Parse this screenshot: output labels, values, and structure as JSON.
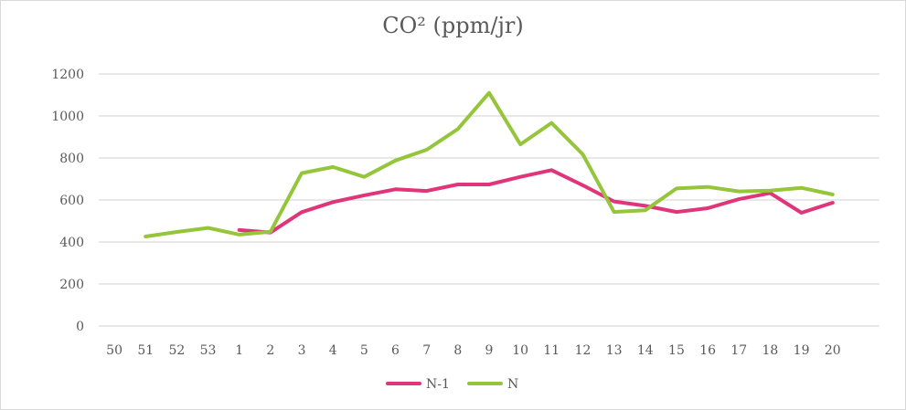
{
  "chart_data": {
    "type": "line",
    "title": "CO² (ppm/jr)",
    "xlabel": "",
    "ylabel": "",
    "ylim": [
      0,
      1200
    ],
    "yticks": [
      0,
      200,
      400,
      600,
      800,
      1000,
      1200
    ],
    "grid": true,
    "legend_position": "bottom",
    "categories": [
      "50",
      "51",
      "52",
      "53",
      "1",
      "2",
      "3",
      "4",
      "5",
      "6",
      "7",
      "8",
      "9",
      "10",
      "11",
      "12",
      "13",
      "14",
      "15",
      "16",
      "17",
      "18",
      "19",
      "20"
    ],
    "series": [
      {
        "name": "N-1",
        "color": "#E0357A",
        "values": [
          null,
          null,
          null,
          null,
          457,
          445,
          542,
          590,
          622,
          651,
          643,
          674,
          674,
          710,
          742,
          670,
          593,
          572,
          543,
          561,
          604,
          633,
          539,
          587
        ]
      },
      {
        "name": "N",
        "color": "#95C53B",
        "values": [
          null,
          426,
          448,
          467,
          435,
          449,
          728,
          757,
          710,
          788,
          839,
          938,
          1110,
          865,
          967,
          817,
          543,
          551,
          655,
          662,
          641,
          645,
          658,
          626
        ]
      }
    ]
  }
}
